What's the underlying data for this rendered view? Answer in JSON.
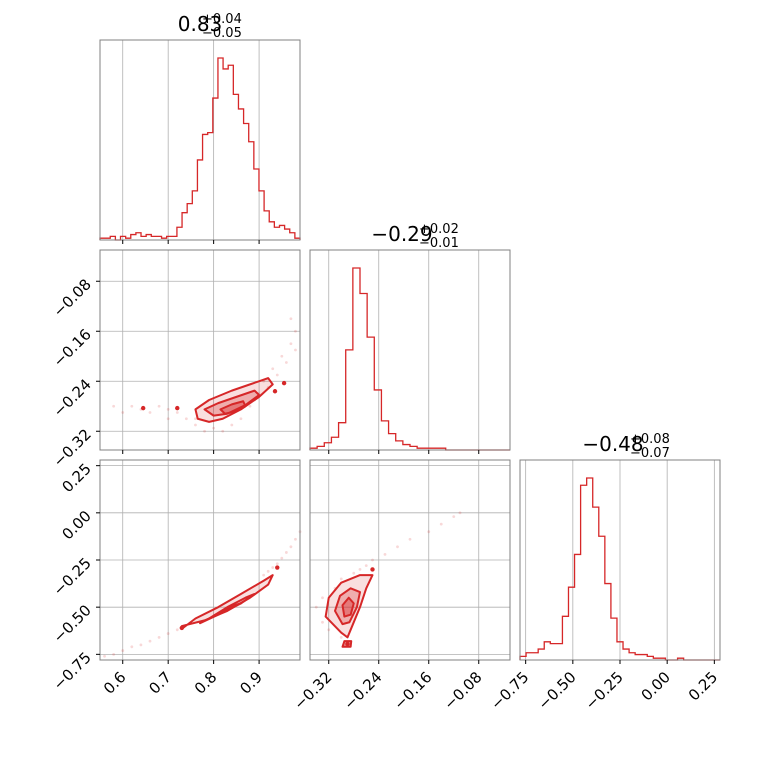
{
  "colors": {
    "accent": "#d62728",
    "grid": "#b0b0b0",
    "frame": "#808080"
  },
  "chart_data": {
    "type": "corner",
    "parameters": [
      {
        "title": {
          "median": "0.83",
          "plus": "+0.04",
          "minus": "−0.05"
        },
        "range": [
          0.55,
          0.99
        ],
        "ticks": [
          0.6,
          0.7,
          0.8,
          0.9
        ],
        "tick_labels": [
          "0.6",
          "0.7",
          "0.8",
          "0.9"
        ],
        "hist_heights": [
          0.01,
          0.01,
          0.02,
          0.0,
          0.02,
          0.01,
          0.03,
          0.04,
          0.02,
          0.03,
          0.02,
          0.02,
          0.01,
          0.02,
          0.02,
          0.07,
          0.15,
          0.2,
          0.27,
          0.44,
          0.58,
          0.59,
          0.78,
          1.0,
          0.94,
          0.96,
          0.8,
          0.72,
          0.64,
          0.54,
          0.39,
          0.27,
          0.16,
          0.1,
          0.07,
          0.08,
          0.06,
          0.04,
          0.01
        ]
      },
      {
        "title": {
          "median": "−0.29",
          "plus": "+0.02",
          "minus": "−0.01"
        },
        "range": [
          -0.35,
          -0.03
        ],
        "ticks": [
          -0.32,
          -0.24,
          -0.16,
          -0.08
        ],
        "tick_labels": [
          "−0.32",
          "−0.24",
          "−0.16",
          "−0.08"
        ],
        "hist_heights": [
          0.01,
          0.02,
          0.04,
          0.07,
          0.15,
          0.55,
          1.0,
          0.86,
          0.62,
          0.33,
          0.16,
          0.09,
          0.05,
          0.03,
          0.02,
          0.01,
          0.01,
          0.01,
          0.01,
          0.0,
          0.0,
          0.0,
          0.0,
          0.0,
          0.0,
          0.0,
          0.0,
          0.0
        ]
      },
      {
        "title": {
          "median": "−0.48",
          "plus": "+0.08",
          "minus": "−0.07"
        },
        "range": [
          -0.78,
          0.28
        ],
        "ticks": [
          -0.75,
          -0.5,
          -0.25,
          0.0,
          0.25
        ],
        "tick_labels": [
          "−0.75",
          "−0.50",
          "−0.25",
          "0.00",
          "0.25"
        ],
        "hist_heights": [
          0.02,
          0.04,
          0.04,
          0.06,
          0.1,
          0.09,
          0.09,
          0.24,
          0.4,
          0.58,
          0.96,
          1.0,
          0.84,
          0.68,
          0.42,
          0.23,
          0.1,
          0.06,
          0.04,
          0.03,
          0.03,
          0.02,
          0.01,
          0.01,
          0.0,
          0.0,
          0.01,
          0.0,
          0.0,
          0.0,
          0.0,
          0.0,
          0.0
        ]
      }
    ],
    "pairs": [
      {
        "x_param": 0,
        "y_param": 1,
        "scatter": [
          [
            0.58,
            -0.28
          ],
          [
            0.6,
            -0.29
          ],
          [
            0.62,
            -0.28
          ],
          [
            0.64,
            -0.285
          ],
          [
            0.66,
            -0.29
          ],
          [
            0.68,
            -0.28
          ],
          [
            0.7,
            -0.285
          ],
          [
            0.72,
            -0.29
          ],
          [
            0.74,
            -0.3
          ],
          [
            0.76,
            -0.31
          ],
          [
            0.78,
            -0.32
          ],
          [
            0.8,
            -0.315
          ],
          [
            0.84,
            -0.31
          ],
          [
            0.88,
            -0.28
          ],
          [
            0.9,
            -0.26
          ],
          [
            0.93,
            -0.22
          ],
          [
            0.95,
            -0.2
          ],
          [
            0.97,
            -0.18
          ],
          [
            0.98,
            -0.16
          ],
          [
            0.96,
            -0.21
          ],
          [
            0.92,
            -0.25
          ],
          [
            0.86,
            -0.3
          ],
          [
            0.82,
            -0.32
          ],
          [
            0.76,
            -0.3
          ],
          [
            0.7,
            -0.3
          ],
          [
            0.94,
            -0.23
          ],
          [
            0.89,
            -0.27
          ],
          [
            0.91,
            -0.24
          ],
          [
            0.98,
            -0.19
          ],
          [
            0.97,
            -0.14
          ]
        ],
        "dense": [
          [
            0.645,
            -0.283
          ],
          [
            0.935,
            -0.256
          ],
          [
            0.955,
            -0.243
          ],
          [
            0.72,
            -0.283
          ]
        ],
        "contours": [
          [
            [
              0.76,
              -0.285
            ],
            [
              0.79,
              -0.27
            ],
            [
              0.84,
              -0.255
            ],
            [
              0.88,
              -0.245
            ],
            [
              0.92,
              -0.235
            ],
            [
              0.93,
              -0.245
            ],
            [
              0.9,
              -0.265
            ],
            [
              0.86,
              -0.285
            ],
            [
              0.82,
              -0.3
            ],
            [
              0.79,
              -0.305
            ],
            [
              0.765,
              -0.3
            ]
          ],
          [
            [
              0.78,
              -0.285
            ],
            [
              0.81,
              -0.275
            ],
            [
              0.85,
              -0.265
            ],
            [
              0.89,
              -0.255
            ],
            [
              0.9,
              -0.262
            ],
            [
              0.87,
              -0.278
            ],
            [
              0.83,
              -0.292
            ],
            [
              0.8,
              -0.295
            ]
          ],
          [
            [
              0.815,
              -0.285
            ],
            [
              0.84,
              -0.277
            ],
            [
              0.865,
              -0.272
            ],
            [
              0.87,
              -0.28
            ],
            [
              0.85,
              -0.288
            ],
            [
              0.825,
              -0.292
            ]
          ]
        ]
      },
      {
        "x_param": 0,
        "y_param": 2,
        "scatter": [
          [
            0.56,
            -0.76
          ],
          [
            0.58,
            -0.75
          ],
          [
            0.6,
            -0.73
          ],
          [
            0.62,
            -0.71
          ],
          [
            0.64,
            -0.7
          ],
          [
            0.66,
            -0.68
          ],
          [
            0.68,
            -0.66
          ],
          [
            0.7,
            -0.64
          ],
          [
            0.72,
            -0.62
          ],
          [
            0.92,
            -0.31
          ],
          [
            0.94,
            -0.27
          ],
          [
            0.95,
            -0.24
          ],
          [
            0.96,
            -0.21
          ],
          [
            0.97,
            -0.18
          ],
          [
            0.98,
            -0.14
          ],
          [
            0.99,
            -0.1
          ],
          [
            0.91,
            -0.33
          ],
          [
            0.93,
            -0.29
          ]
        ],
        "dense": [
          [
            0.73,
            -0.61
          ],
          [
            0.94,
            -0.29
          ]
        ],
        "contours": [
          [
            [
              0.73,
              -0.6
            ],
            [
              0.78,
              -0.57
            ],
            [
              0.83,
              -0.52
            ],
            [
              0.88,
              -0.45
            ],
            [
              0.92,
              -0.38
            ],
            [
              0.93,
              -0.33
            ],
            [
              0.91,
              -0.36
            ],
            [
              0.86,
              -0.43
            ],
            [
              0.81,
              -0.5
            ],
            [
              0.76,
              -0.56
            ],
            [
              0.73,
              -0.615
            ]
          ],
          [
            [
              0.77,
              -0.585
            ],
            [
              0.81,
              -0.54
            ],
            [
              0.86,
              -0.48
            ],
            [
              0.89,
              -0.43
            ],
            [
              0.87,
              -0.45
            ],
            [
              0.83,
              -0.5
            ],
            [
              0.79,
              -0.56
            ]
          ],
          [
            [
              0.8,
              -0.545
            ],
            [
              0.83,
              -0.51
            ],
            [
              0.86,
              -0.48
            ],
            [
              0.845,
              -0.49
            ],
            [
              0.815,
              -0.53
            ]
          ]
        ]
      },
      {
        "x_param": 1,
        "y_param": 2,
        "scatter": [
          [
            -0.34,
            -0.5
          ],
          [
            -0.33,
            -0.45
          ],
          [
            -0.32,
            -0.62
          ],
          [
            -0.31,
            -0.4
          ],
          [
            -0.3,
            -0.35
          ],
          [
            -0.29,
            -0.7
          ],
          [
            -0.28,
            -0.32
          ],
          [
            -0.27,
            -0.3
          ],
          [
            -0.26,
            -0.28
          ],
          [
            -0.25,
            -0.25
          ],
          [
            -0.23,
            -0.22
          ],
          [
            -0.21,
            -0.18
          ],
          [
            -0.19,
            -0.14
          ],
          [
            -0.16,
            -0.1
          ],
          [
            -0.14,
            -0.06
          ],
          [
            -0.12,
            -0.02
          ],
          [
            -0.11,
            0.0
          ],
          [
            -0.33,
            -0.58
          ],
          [
            -0.3,
            -0.66
          ],
          [
            -0.25,
            -0.3
          ]
        ],
        "dense": [
          [
            -0.29,
            -0.695
          ],
          [
            -0.25,
            -0.3
          ]
        ],
        "contours": [
          [
            [
              -0.3,
              -0.635
            ],
            [
              -0.325,
              -0.55
            ],
            [
              -0.32,
              -0.45
            ],
            [
              -0.3,
              -0.37
            ],
            [
              -0.27,
              -0.33
            ],
            [
              -0.25,
              -0.33
            ],
            [
              -0.26,
              -0.4
            ],
            [
              -0.27,
              -0.5
            ],
            [
              -0.285,
              -0.62
            ],
            [
              -0.29,
              -0.66
            ]
          ],
          [
            [
              -0.298,
              -0.59
            ],
            [
              -0.31,
              -0.52
            ],
            [
              -0.302,
              -0.44
            ],
            [
              -0.285,
              -0.4
            ],
            [
              -0.27,
              -0.42
            ],
            [
              -0.275,
              -0.5
            ],
            [
              -0.287,
              -0.58
            ]
          ],
          [
            [
              -0.295,
              -0.55
            ],
            [
              -0.298,
              -0.49
            ],
            [
              -0.288,
              -0.45
            ],
            [
              -0.28,
              -0.48
            ],
            [
              -0.285,
              -0.54
            ]
          ],
          [
            [
              -0.295,
              -0.68
            ],
            [
              -0.298,
              -0.71
            ],
            [
              -0.285,
              -0.71
            ],
            [
              -0.284,
              -0.68
            ]
          ]
        ]
      }
    ]
  }
}
